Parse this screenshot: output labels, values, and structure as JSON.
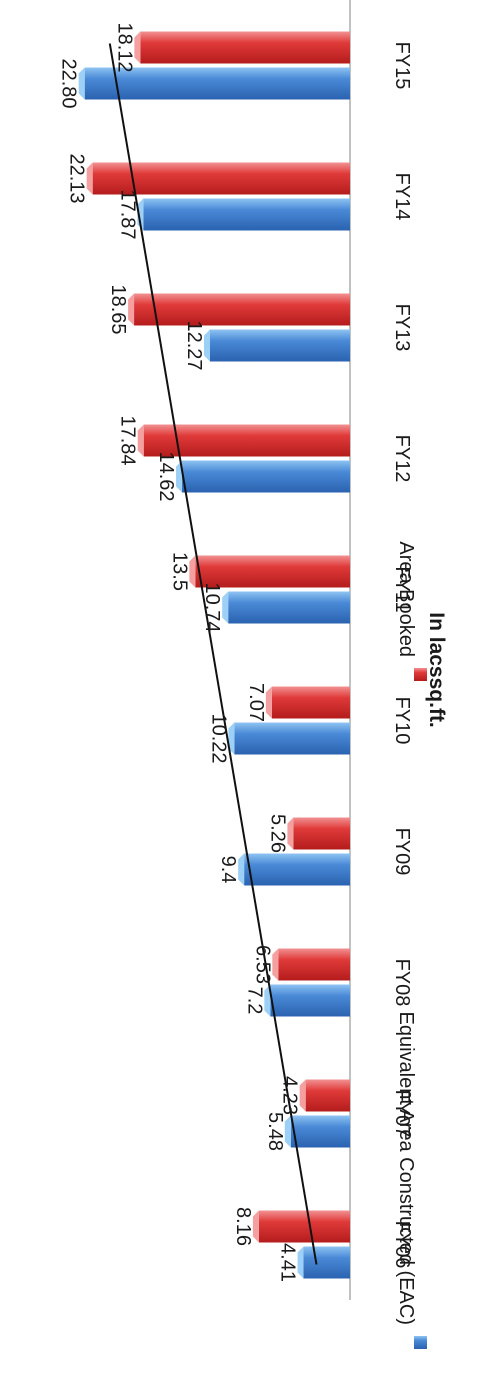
{
  "chart_data": {
    "type": "bar",
    "ylabel": "In lacssq.ft.",
    "categories": [
      "FY06",
      "FY07",
      "FY08",
      "FY09",
      "FY10",
      "FY11",
      "FY12",
      "FY13",
      "FY14",
      "FY15"
    ],
    "series": [
      {
        "name": "Equivalent Area Constructed (EAC)",
        "color": "#3a78c4",
        "values": [
          4.41,
          5.48,
          7.2,
          9.4,
          10.22,
          10.74,
          14.62,
          12.27,
          17.87,
          22.8
        ],
        "labels": [
          "4.41",
          "5.48",
          "7.2",
          "9.4",
          "10.22",
          "10.74",
          "14.62",
          "12.27",
          "17.87",
          "22.80"
        ]
      },
      {
        "name": "Area Booked",
        "color": "#d42e2e",
        "values": [
          8.16,
          4.23,
          6.53,
          5.26,
          7.07,
          13.5,
          17.84,
          18.65,
          22.13,
          18.12
        ],
        "labels": [
          "8.16",
          "4.23",
          "6.53",
          "5.26",
          "7.07",
          "13.5",
          "17.84",
          "18.65",
          "22.13",
          "18.12"
        ]
      }
    ],
    "trendline": {
      "series": "Equivalent Area Constructed (EAC)",
      "type": "linear"
    },
    "ylim": [
      0,
      25
    ],
    "grid": false,
    "legend": "bottom",
    "orientation": "rotated-90-clockwise"
  }
}
